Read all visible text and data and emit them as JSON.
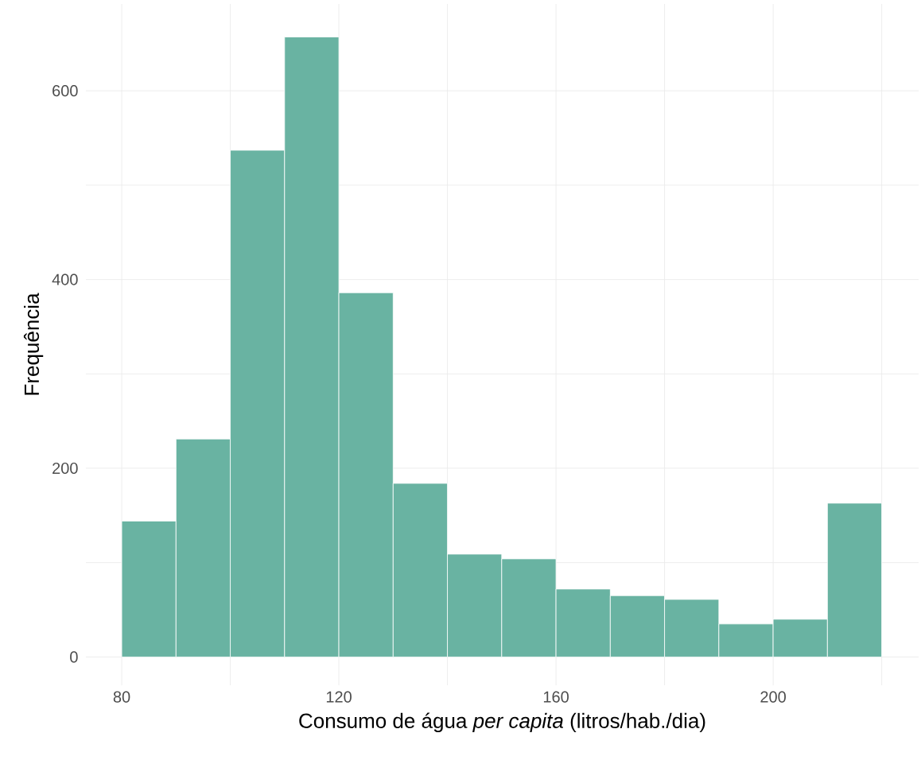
{
  "chart_data": {
    "type": "histogram",
    "xlabel": "Consumo de água *per capita* (litros/hab./dia)",
    "ylabel": "Frequência",
    "bins": [
      80,
      90,
      100,
      110,
      120,
      130,
      140,
      150,
      160,
      170,
      180,
      190,
      200,
      210,
      220
    ],
    "values": [
      144,
      231,
      537,
      657,
      386,
      184,
      109,
      104,
      72,
      65,
      61,
      35,
      40,
      163
    ],
    "color": "#69b3a2",
    "xlim": [
      73.4,
      226.8
    ],
    "ylim": [
      -30,
      692
    ],
    "xticks": [
      80,
      {
        "value": 100,
        "label": null
      },
      120,
      {
        "value": 140,
        "label": null
      },
      160,
      {
        "value": 180,
        "label": null
      },
      200,
      {
        "value": 220,
        "label": null
      }
    ],
    "yticks": [
      0,
      {
        "value": 100,
        "label": null
      },
      200,
      {
        "value": 300,
        "label": null
      },
      400,
      {
        "value": 500,
        "label": null
      },
      600
    ],
    "grid": true
  }
}
